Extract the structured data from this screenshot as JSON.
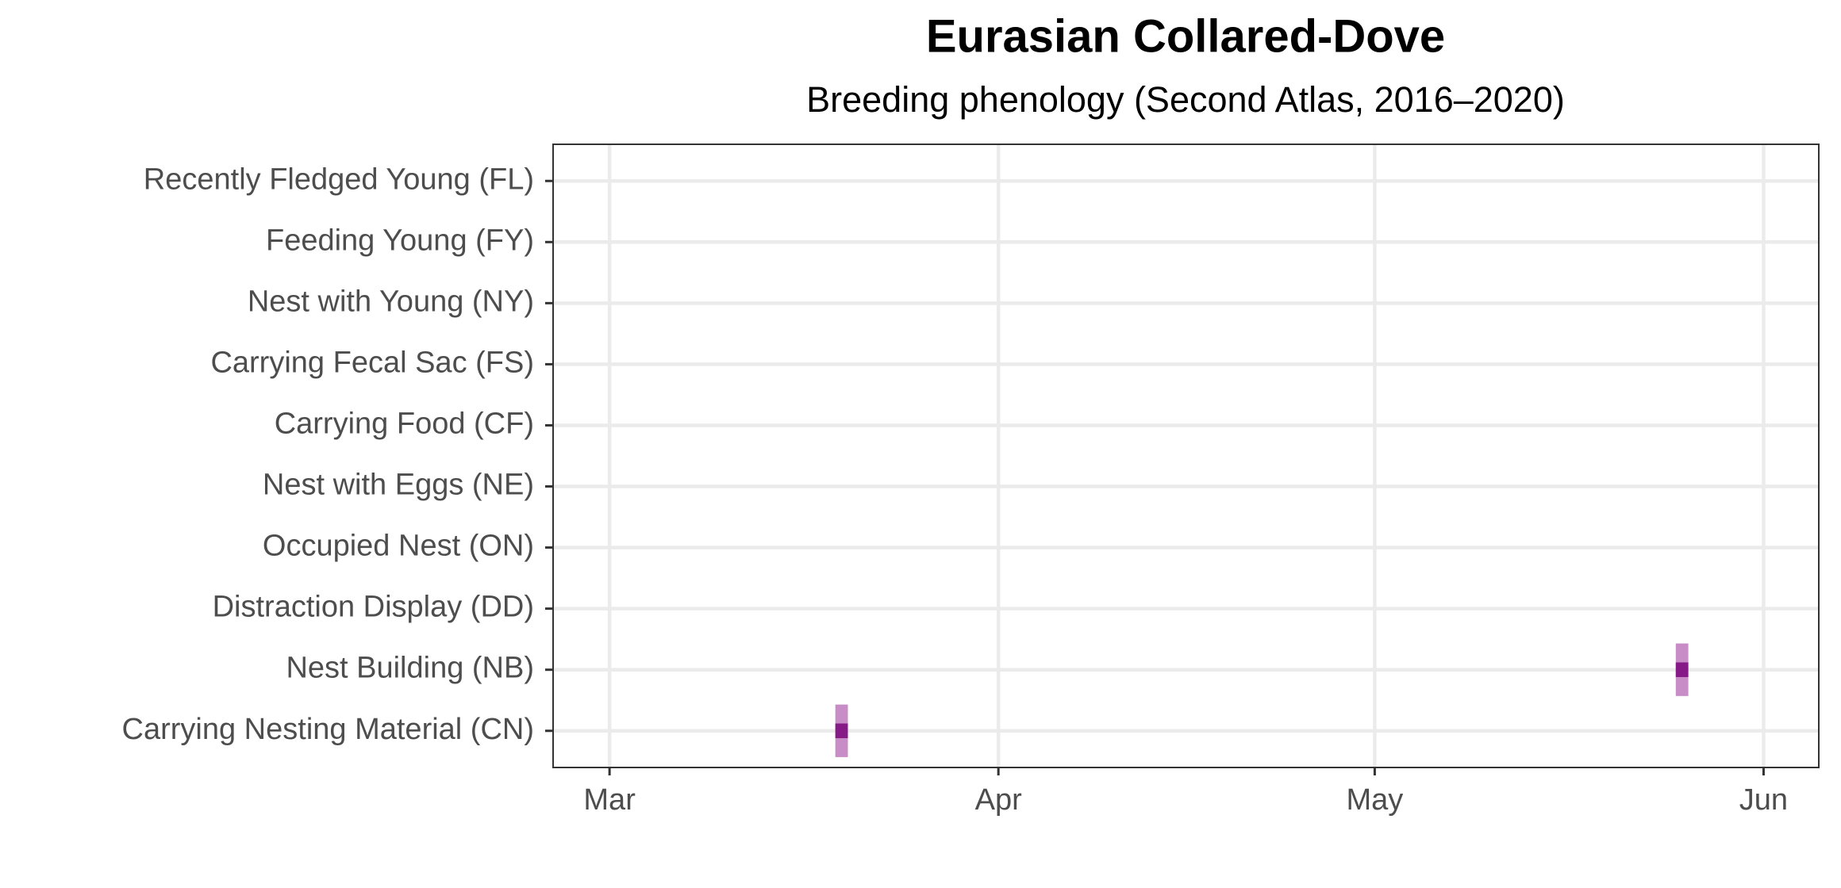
{
  "chart_data": {
    "type": "tile",
    "title": "Eurasian Collared-Dove",
    "subtitle": "Breeding phenology (Second Atlas, 2016–2020)",
    "categories": [
      "Recently Fledged Young (FL)",
      "Feeding Young (FY)",
      "Nest with Young (NY)",
      "Carrying Fecal Sac (FS)",
      "Carrying Food (CF)",
      "Nest with Eggs (NE)",
      "Occupied Nest (ON)",
      "Distraction Display (DD)",
      "Nest Building (NB)",
      "Carrying Nesting Material (CN)"
    ],
    "values": [
      null,
      null,
      null,
      null,
      null,
      null,
      null,
      null,
      145.5,
      78.5
    ],
    "color": "#861a86",
    "range_color": "#c88cc6",
    "xlim": [
      55.5,
      156.4
    ],
    "xticks": [
      {
        "value": 60,
        "label": "Mar"
      },
      {
        "value": 91,
        "label": "Apr"
      },
      {
        "value": 121,
        "label": "May"
      },
      {
        "value": 152,
        "label": "Jun"
      }
    ],
    "grid": true
  }
}
